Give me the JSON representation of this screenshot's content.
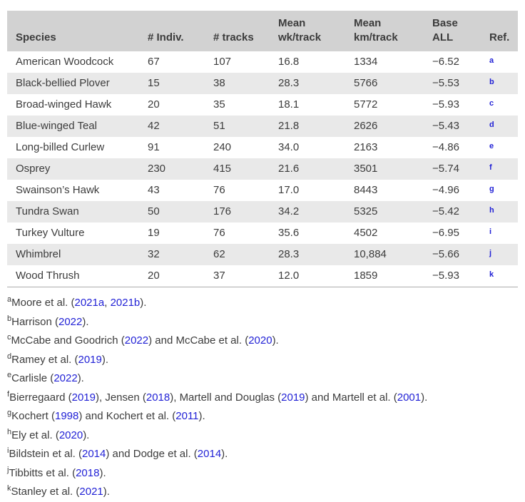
{
  "colors": {
    "header_bg": "#d2d2d2",
    "stripe_bg": "#e9e9e9",
    "text": "#3c3c3c",
    "link": "#2222d6",
    "border": "#ababab"
  },
  "table": {
    "columns": [
      {
        "label": "Species"
      },
      {
        "label": "# Indiv."
      },
      {
        "label": "# tracks"
      },
      {
        "label": "Mean\nwk/track"
      },
      {
        "label": "Mean\nkm/track"
      },
      {
        "label": "Base\nALL"
      },
      {
        "label": "Ref."
      }
    ],
    "rows": [
      {
        "species": "American Woodcock",
        "indiv": "67",
        "tracks": "107",
        "wk": "16.8",
        "km": "1334",
        "base": "−6.52",
        "ref": "a"
      },
      {
        "species": "Black-bellied Plover",
        "indiv": "15",
        "tracks": "38",
        "wk": "28.3",
        "km": "5766",
        "base": "−5.53",
        "ref": "b"
      },
      {
        "species": "Broad-winged Hawk",
        "indiv": "20",
        "tracks": "35",
        "wk": "18.1",
        "km": "5772",
        "base": "−5.93",
        "ref": "c"
      },
      {
        "species": "Blue-winged Teal",
        "indiv": "42",
        "tracks": "51",
        "wk": "21.8",
        "km": "2626",
        "base": "−5.43",
        "ref": "d"
      },
      {
        "species": "Long-billed Curlew",
        "indiv": "91",
        "tracks": "240",
        "wk": "34.0",
        "km": "2163",
        "base": "−4.86",
        "ref": "e"
      },
      {
        "species": "Osprey",
        "indiv": "230",
        "tracks": "415",
        "wk": "21.6",
        "km": "3501",
        "base": "−5.74",
        "ref": "f"
      },
      {
        "species": "Swainson’s Hawk",
        "indiv": "43",
        "tracks": "76",
        "wk": "17.0",
        "km": "8443",
        "base": "−4.96",
        "ref": "g"
      },
      {
        "species": "Tundra Swan",
        "indiv": "50",
        "tracks": "176",
        "wk": "34.2",
        "km": "5325",
        "base": "−5.42",
        "ref": "h"
      },
      {
        "species": "Turkey Vulture",
        "indiv": "19",
        "tracks": "76",
        "wk": "35.6",
        "km": "4502",
        "base": "−6.95",
        "ref": "i"
      },
      {
        "species": "Whimbrel",
        "indiv": "32",
        "tracks": "62",
        "wk": "28.3",
        "km": "10,884",
        "base": "−5.66",
        "ref": "j"
      },
      {
        "species": "Wood Thrush",
        "indiv": "20",
        "tracks": "37",
        "wk": "12.0",
        "km": "1859",
        "base": "−5.93",
        "ref": "k"
      }
    ]
  },
  "footnotes": [
    {
      "sup": "a",
      "parts": [
        {
          "text": "Moore et al. ("
        },
        {
          "link": "2021a"
        },
        {
          "text": ", "
        },
        {
          "link": "2021b"
        },
        {
          "text": ")."
        }
      ]
    },
    {
      "sup": "b",
      "parts": [
        {
          "text": "Harrison ("
        },
        {
          "link": "2022"
        },
        {
          "text": ")."
        }
      ]
    },
    {
      "sup": "c",
      "parts": [
        {
          "text": "McCabe and Goodrich ("
        },
        {
          "link": "2022"
        },
        {
          "text": ") and McCabe et al. ("
        },
        {
          "link": "2020"
        },
        {
          "text": ")."
        }
      ]
    },
    {
      "sup": "d",
      "parts": [
        {
          "text": "Ramey et al. ("
        },
        {
          "link": "2019"
        },
        {
          "text": ")."
        }
      ]
    },
    {
      "sup": "e",
      "parts": [
        {
          "text": "Carlisle ("
        },
        {
          "link": "2022"
        },
        {
          "text": ")."
        }
      ]
    },
    {
      "sup": "f",
      "parts": [
        {
          "text": "Bierregaard ("
        },
        {
          "link": "2019"
        },
        {
          "text": "), Jensen ("
        },
        {
          "link": "2018"
        },
        {
          "text": "), Martell and Douglas ("
        },
        {
          "link": "2019"
        },
        {
          "text": ") and Martell et al. ("
        },
        {
          "link": "2001"
        },
        {
          "text": ")."
        }
      ]
    },
    {
      "sup": "g",
      "parts": [
        {
          "text": "Kochert ("
        },
        {
          "link": "1998"
        },
        {
          "text": ") and Kochert et al. ("
        },
        {
          "link": "2011"
        },
        {
          "text": ")."
        }
      ]
    },
    {
      "sup": "h",
      "parts": [
        {
          "text": "Ely et al. ("
        },
        {
          "link": "2020"
        },
        {
          "text": ")."
        }
      ]
    },
    {
      "sup": "i",
      "parts": [
        {
          "text": "Bildstein et al. ("
        },
        {
          "link": "2014"
        },
        {
          "text": ") and Dodge et al. ("
        },
        {
          "link": "2014"
        },
        {
          "text": ")."
        }
      ]
    },
    {
      "sup": "j",
      "parts": [
        {
          "text": "Tibbitts et al. ("
        },
        {
          "link": "2018"
        },
        {
          "text": ")."
        }
      ]
    },
    {
      "sup": "k",
      "parts": [
        {
          "text": "Stanley et al. ("
        },
        {
          "link": "2021"
        },
        {
          "text": ")."
        }
      ]
    }
  ]
}
